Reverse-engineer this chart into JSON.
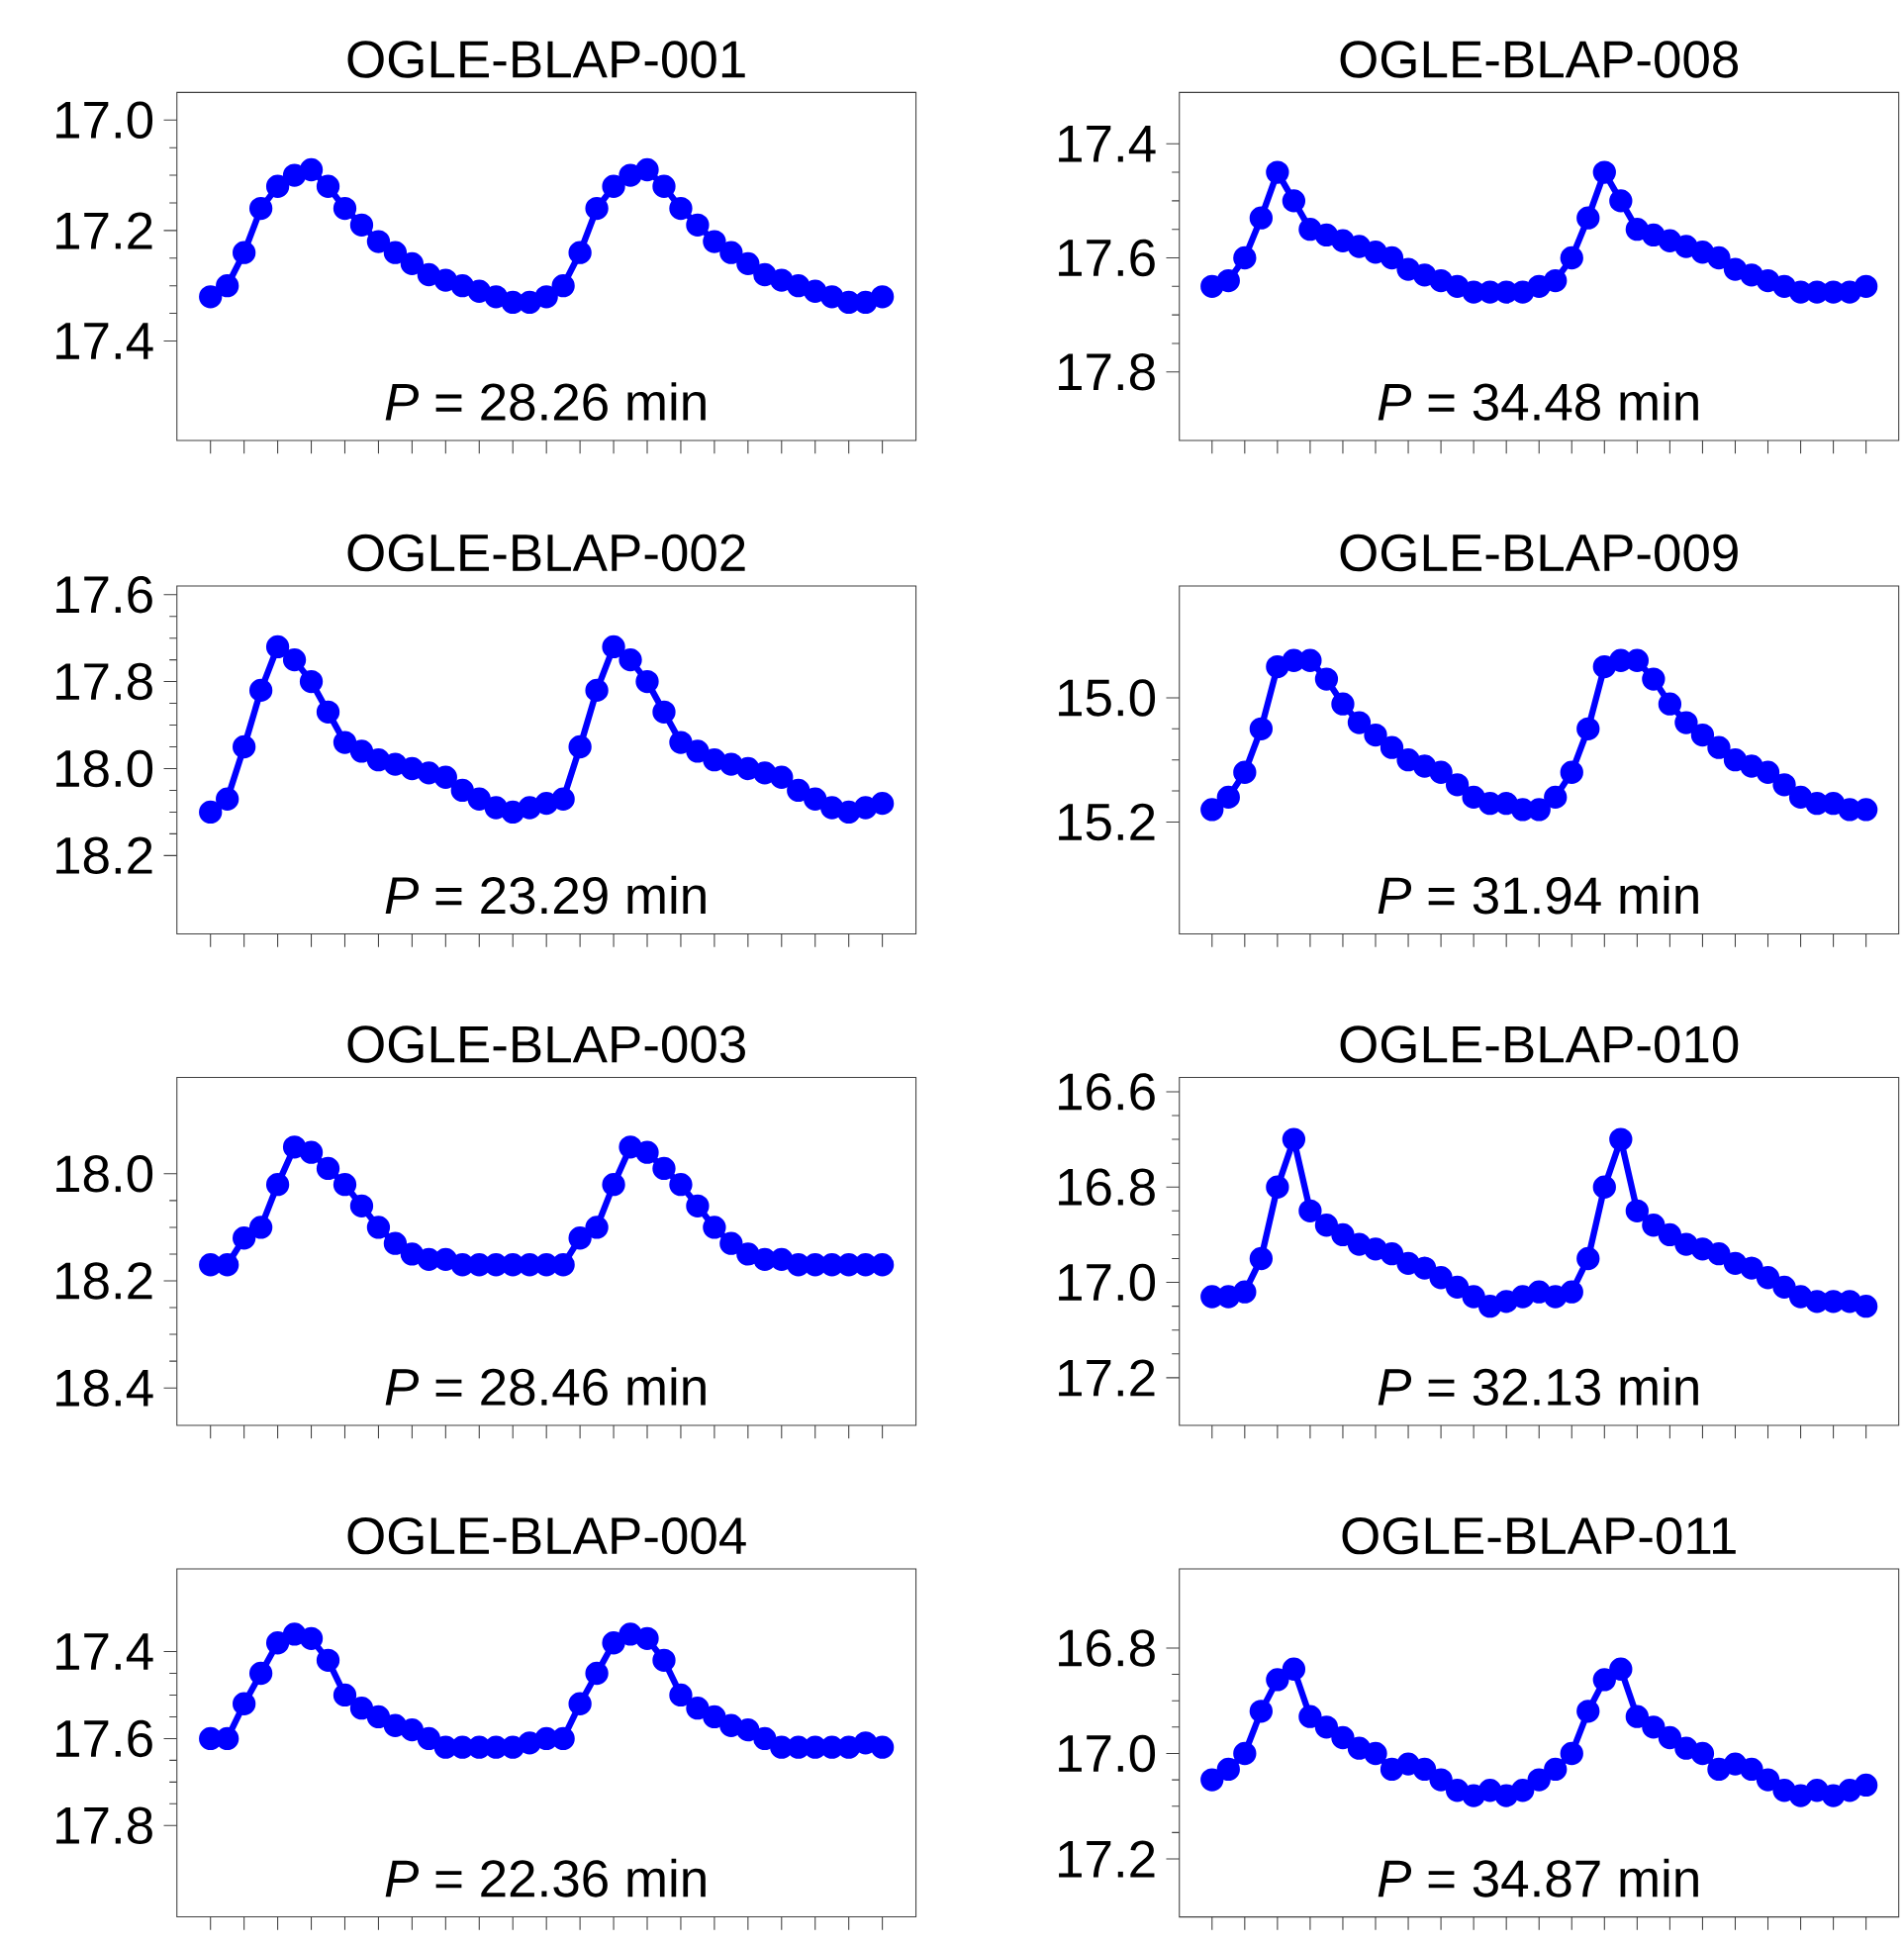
{
  "chart_data": [
    {
      "type": "line",
      "line_style": "solid",
      "title": "OGLE-BLAP-001",
      "annotations": [
        "*P* = 28.26 min"
      ],
      "categories": [
        null,
        null,
        null,
        null,
        null,
        null,
        null,
        null,
        null,
        null,
        null,
        null,
        null,
        null,
        null,
        null,
        null,
        null,
        null,
        null,
        null,
        null,
        null,
        null,
        null,
        null,
        null,
        null,
        null,
        null,
        null,
        null,
        null,
        null,
        null,
        null,
        null,
        null,
        null,
        null,
        null
      ],
      "ylim": [
        17.58,
        16.95
      ],
      "yticks": [
        {
          "value": 17.0,
          "label": "17.0"
        },
        17.2,
        17.4
      ],
      "tick_labels": "y",
      "marker": "circle",
      "series": [
        {
          "color": "#0000ff",
          "values": [
            17.32,
            17.3,
            17.24,
            17.16,
            17.12,
            17.1,
            17.09,
            17.12,
            17.16,
            17.19,
            17.22,
            17.24,
            17.26,
            17.28,
            17.29,
            17.3,
            17.31,
            17.32,
            17.33,
            17.33,
            17.32,
            17.3,
            17.24,
            17.16,
            17.12,
            17.1,
            17.09,
            17.12,
            17.16,
            17.19,
            17.22,
            17.24,
            17.26,
            17.28,
            17.29,
            17.3,
            17.31,
            17.32,
            17.33,
            17.33,
            17.32
          ]
        }
      ]
    },
    {
      "type": "line",
      "line_style": "solid",
      "title": "OGLE-BLAP-008",
      "annotations": [
        "*P* = 34.48 min"
      ],
      "categories": [
        null,
        null,
        null,
        null,
        null,
        null,
        null,
        null,
        null,
        null,
        null,
        null,
        null,
        null,
        null,
        null,
        null,
        null,
        null,
        null,
        null,
        null,
        null,
        null,
        null,
        null,
        null,
        null,
        null,
        null,
        null,
        null,
        null,
        null,
        null,
        null,
        null,
        null,
        null,
        null,
        null
      ],
      "ylim": [
        17.92,
        17.31
      ],
      "yticks": [
        17.4,
        17.6,
        17.8
      ],
      "tick_labels": "y",
      "marker": "circle",
      "series": [
        {
          "color": "#0000ff",
          "values": [
            17.65,
            17.64,
            17.6,
            17.53,
            17.45,
            17.5,
            17.55,
            17.56,
            17.57,
            17.58,
            17.59,
            17.6,
            17.62,
            17.63,
            17.64,
            17.65,
            17.66,
            17.66,
            17.66,
            17.66,
            17.65,
            17.64,
            17.6,
            17.53,
            17.45,
            17.5,
            17.55,
            17.56,
            17.57,
            17.58,
            17.59,
            17.6,
            17.62,
            17.63,
            17.64,
            17.65,
            17.66,
            17.66,
            17.66,
            17.66,
            17.65
          ]
        }
      ]
    },
    {
      "type": "line",
      "line_style": "solid",
      "title": "OGLE-BLAP-002",
      "annotations": [
        "*P* = 23.29 min"
      ],
      "categories": [
        null,
        null,
        null,
        null,
        null,
        null,
        null,
        null,
        null,
        null,
        null,
        null,
        null,
        null,
        null,
        null,
        null,
        null,
        null,
        null,
        null,
        null,
        null,
        null,
        null,
        null,
        null,
        null,
        null,
        null,
        null,
        null,
        null,
        null,
        null,
        null,
        null,
        null,
        null,
        null,
        null
      ],
      "ylim": [
        18.38,
        17.58
      ],
      "yticks": [
        17.6,
        17.8,
        {
          "value": 18.0,
          "label": "18.0"
        },
        18.2
      ],
      "tick_labels": "y",
      "marker": "circle",
      "series": [
        {
          "color": "#0000ff",
          "values": [
            18.1,
            18.07,
            17.95,
            17.82,
            17.72,
            17.75,
            17.8,
            17.87,
            17.94,
            17.96,
            17.98,
            17.99,
            18.0,
            18.01,
            18.02,
            18.05,
            18.07,
            18.09,
            18.1,
            18.09,
            18.08,
            18.07,
            17.95,
            17.82,
            17.72,
            17.75,
            17.8,
            17.87,
            17.94,
            17.96,
            17.98,
            17.99,
            18.0,
            18.01,
            18.02,
            18.05,
            18.07,
            18.09,
            18.1,
            18.09,
            18.08
          ]
        }
      ]
    },
    {
      "type": "line",
      "line_style": "solid",
      "title": "OGLE-BLAP-009",
      "annotations": [
        "*P* = 31.94 min"
      ],
      "categories": [
        null,
        null,
        null,
        null,
        null,
        null,
        null,
        null,
        null,
        null,
        null,
        null,
        null,
        null,
        null,
        null,
        null,
        null,
        null,
        null,
        null,
        null,
        null,
        null,
        null,
        null,
        null,
        null,
        null,
        null,
        null,
        null,
        null,
        null,
        null,
        null,
        null,
        null,
        null,
        null,
        null
      ],
      "ylim": [
        15.38,
        14.82
      ],
      "yticks": [
        {
          "value": 15.0,
          "label": "15.0"
        },
        15.2
      ],
      "tick_labels": "y",
      "marker": "circle",
      "series": [
        {
          "color": "#0000ff",
          "values": [
            15.18,
            15.16,
            15.12,
            15.05,
            14.95,
            14.94,
            14.94,
            14.97,
            15.01,
            15.04,
            15.06,
            15.08,
            15.1,
            15.11,
            15.12,
            15.14,
            15.16,
            15.17,
            15.17,
            15.18,
            15.18,
            15.16,
            15.12,
            15.05,
            14.95,
            14.94,
            14.94,
            14.97,
            15.01,
            15.04,
            15.06,
            15.08,
            15.1,
            15.11,
            15.12,
            15.14,
            15.16,
            15.17,
            15.17,
            15.18,
            15.18
          ]
        }
      ]
    },
    {
      "type": "line",
      "line_style": "solid",
      "title": "OGLE-BLAP-003",
      "annotations": [
        "*P* = 28.46 min"
      ],
      "categories": [
        null,
        null,
        null,
        null,
        null,
        null,
        null,
        null,
        null,
        null,
        null,
        null,
        null,
        null,
        null,
        null,
        null,
        null,
        null,
        null,
        null,
        null,
        null,
        null,
        null,
        null,
        null,
        null,
        null,
        null,
        null,
        null,
        null,
        null,
        null,
        null,
        null,
        null,
        null,
        null,
        null
      ],
      "ylim": [
        18.47,
        17.82
      ],
      "yticks": [
        {
          "value": 18.0,
          "label": "18.0"
        },
        18.2,
        18.4
      ],
      "tick_labels": "y",
      "marker": "circle",
      "series": [
        {
          "color": "#0000ff",
          "values": [
            18.17,
            18.17,
            18.12,
            18.1,
            18.02,
            17.95,
            17.96,
            17.99,
            18.02,
            18.06,
            18.1,
            18.13,
            18.15,
            18.16,
            18.16,
            18.17,
            18.17,
            18.17,
            18.17,
            18.17,
            18.17,
            18.17,
            18.12,
            18.1,
            18.02,
            17.95,
            17.96,
            17.99,
            18.02,
            18.06,
            18.1,
            18.13,
            18.15,
            18.16,
            18.16,
            18.17,
            18.17,
            18.17,
            18.17,
            18.17,
            18.17
          ]
        }
      ]
    },
    {
      "type": "line",
      "line_style": "solid",
      "title": "OGLE-BLAP-010",
      "annotations": [
        "*P* = 32.13 min"
      ],
      "categories": [
        null,
        null,
        null,
        null,
        null,
        null,
        null,
        null,
        null,
        null,
        null,
        null,
        null,
        null,
        null,
        null,
        null,
        null,
        null,
        null,
        null,
        null,
        null,
        null,
        null,
        null,
        null,
        null,
        null,
        null,
        null,
        null,
        null,
        null,
        null,
        null,
        null,
        null,
        null,
        null,
        null
      ],
      "ylim": [
        17.3,
        16.57
      ],
      "yticks": [
        16.6,
        16.8,
        {
          "value": 17.0,
          "label": "17.0"
        },
        17.2
      ],
      "tick_labels": "y",
      "marker": "circle",
      "series": [
        {
          "color": "#0000ff",
          "values": [
            17.03,
            17.03,
            17.02,
            16.95,
            16.8,
            16.7,
            16.85,
            16.88,
            16.9,
            16.92,
            16.93,
            16.94,
            16.96,
            16.97,
            16.99,
            17.01,
            17.03,
            17.05,
            17.04,
            17.03,
            17.02,
            17.03,
            17.02,
            16.95,
            16.8,
            16.7,
            16.85,
            16.88,
            16.9,
            16.92,
            16.93,
            16.94,
            16.96,
            16.97,
            16.99,
            17.01,
            17.03,
            17.04,
            17.04,
            17.04,
            17.05
          ]
        }
      ]
    },
    {
      "type": "line",
      "line_style": "solid",
      "title": "OGLE-BLAP-004",
      "annotations": [
        "*P* = 22.36 min"
      ],
      "categories": [
        null,
        null,
        null,
        null,
        null,
        null,
        null,
        null,
        null,
        null,
        null,
        null,
        null,
        null,
        null,
        null,
        null,
        null,
        null,
        null,
        null,
        null,
        null,
        null,
        null,
        null,
        null,
        null,
        null,
        null,
        null,
        null,
        null,
        null,
        null,
        null,
        null,
        null,
        null,
        null,
        null
      ],
      "ylim": [
        18.01,
        17.21
      ],
      "yticks": [
        17.4,
        17.6,
        17.8
      ],
      "tick_labels": "y",
      "marker": "circle",
      "series": [
        {
          "color": "#0000ff",
          "values": [
            17.6,
            17.6,
            17.52,
            17.45,
            17.38,
            17.36,
            17.37,
            17.42,
            17.5,
            17.53,
            17.55,
            17.57,
            17.58,
            17.6,
            17.62,
            17.62,
            17.62,
            17.62,
            17.62,
            17.61,
            17.6,
            17.6,
            17.52,
            17.45,
            17.38,
            17.36,
            17.37,
            17.42,
            17.5,
            17.53,
            17.55,
            17.57,
            17.58,
            17.6,
            17.62,
            17.62,
            17.62,
            17.62,
            17.62,
            17.61,
            17.62
          ]
        }
      ]
    },
    {
      "type": "line",
      "line_style": "solid",
      "title": "OGLE-BLAP-011",
      "annotations": [
        "*P* = 34.87 min"
      ],
      "categories": [
        null,
        null,
        null,
        null,
        null,
        null,
        null,
        null,
        null,
        null,
        null,
        null,
        null,
        null,
        null,
        null,
        null,
        null,
        null,
        null,
        null,
        null,
        null,
        null,
        null,
        null,
        null,
        null,
        null,
        null,
        null,
        null,
        null,
        null,
        null,
        null,
        null,
        null,
        null,
        null,
        null
      ],
      "ylim": [
        17.31,
        16.65
      ],
      "yticks": [
        16.8,
        {
          "value": 17.0,
          "label": "17.0"
        },
        17.2
      ],
      "tick_labels": "y",
      "marker": "circle",
      "series": [
        {
          "color": "#0000ff",
          "values": [
            17.05,
            17.03,
            17.0,
            16.92,
            16.86,
            16.84,
            16.93,
            16.95,
            16.97,
            16.99,
            17.0,
            17.03,
            17.02,
            17.03,
            17.05,
            17.07,
            17.08,
            17.07,
            17.08,
            17.07,
            17.05,
            17.03,
            17.0,
            16.92,
            16.86,
            16.84,
            16.93,
            16.95,
            16.97,
            16.99,
            17.0,
            17.03,
            17.02,
            17.03,
            17.05,
            17.07,
            17.08,
            17.07,
            17.08,
            17.07,
            17.06
          ]
        }
      ]
    }
  ]
}
